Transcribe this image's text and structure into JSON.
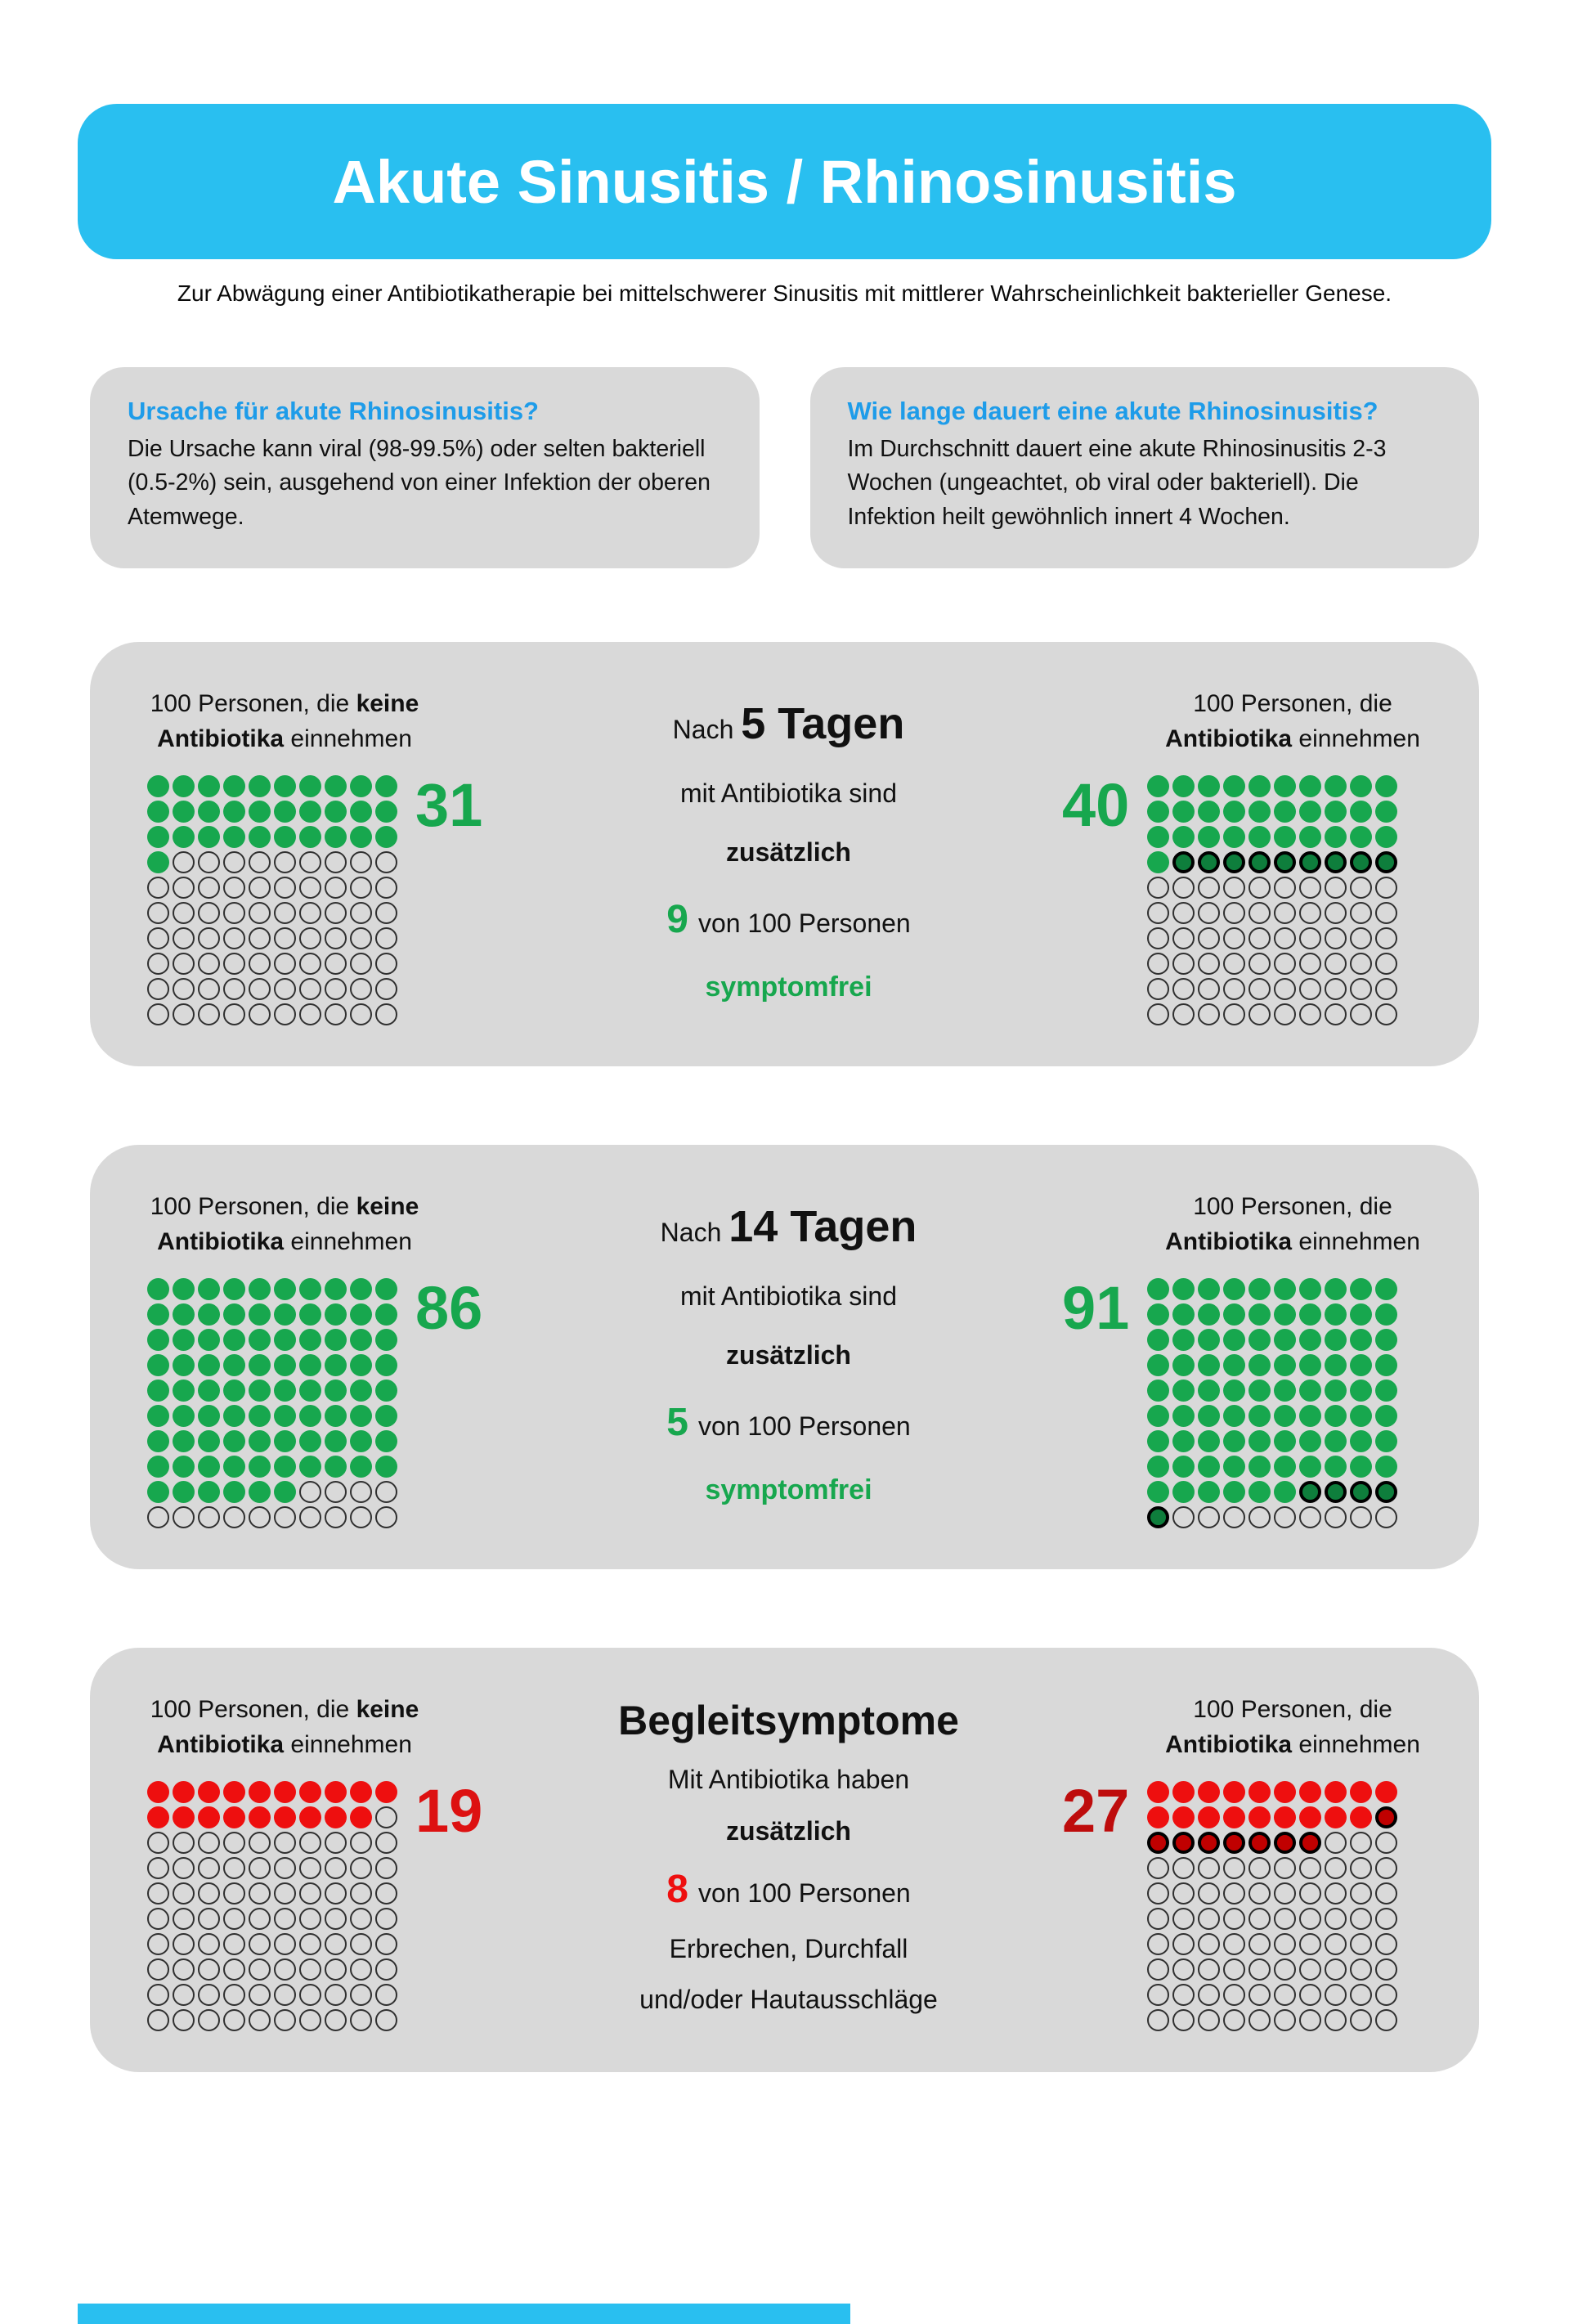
{
  "colors": {
    "header_bg": "#29BFF0",
    "question_heading": "#1E9CE9",
    "panel_bg": "#D9D9D9",
    "green": "#17A74E",
    "green_dark": "#0E7E3C",
    "red": "#EE0F0F",
    "red_dark": "#C00000",
    "num_red_light": "#DD1111",
    "num_red_dark": "#BE0C0C"
  },
  "page": {
    "title": "Akute Sinusitis / Rhinosinusitis",
    "subtitle": "Zur Abwägung einer Antibiotikatherapie bei mittelschwerer Sinusitis mit mittlerer Wahrscheinlichkeit bakterieller Genese."
  },
  "info_boxes": [
    {
      "heading": "Ursache für akute Rhinosinusitis?",
      "body": "Die Ursache kann viral (98-99.5%) oder selten bakteriell (0.5-2%) sein, ausgehend von einer Infektion der oberen Atemwege."
    },
    {
      "heading": "Wie lange dauert eine akute Rhinosinusitis?",
      "body": "Im Durchschnitt dauert eine akute Rhinosinusitis 2-3 Wochen (ungeachtet, ob viral oder bakteriell). Die Infektion heilt gewöhnlich innert 4 Wochen."
    }
  ],
  "panels": [
    {
      "left": {
        "label": {
          "l1n": "100 Personen, die ",
          "l1b": "keine",
          "l2b": "Antibiotika",
          "l2n": " einnehmen"
        },
        "count": "31",
        "chart": {
          "bright": 31,
          "dark": 0,
          "palette": "green"
        }
      },
      "center": {
        "pre": "Nach ",
        "big": "5 Tagen",
        "l2": "mit Antibiotika sind",
        "l3": "zusätzlich",
        "num": "9",
        "l4": "von 100 Personen",
        "l5": "symptomfrei"
      },
      "right": {
        "label": {
          "l1n": "100 Personen, die",
          "l2b": "Antibiotika",
          "l2n": " einnehmen"
        },
        "count": "40",
        "chart": {
          "bright": 31,
          "dark": 9,
          "palette": "green"
        }
      }
    },
    {
      "left": {
        "label": {
          "l1n": "100 Personen, die ",
          "l1b": "keine",
          "l2b": "Antibiotika",
          "l2n": " einnehmen"
        },
        "count": "86",
        "chart": {
          "bright": 86,
          "dark": 0,
          "palette": "green"
        }
      },
      "center": {
        "pre": "Nach ",
        "big": "14 Tagen",
        "l2": "mit Antibiotika sind",
        "l3": "zusätzlich",
        "num": "5",
        "l4": "von 100 Personen",
        "l5": "symptomfrei"
      },
      "right": {
        "label": {
          "l1n": "100 Personen, die",
          "l2b": "Antibiotika",
          "l2n": " einnehmen"
        },
        "count": "91",
        "chart": {
          "bright": 86,
          "dark": 5,
          "palette": "green"
        }
      }
    },
    {
      "left": {
        "label": {
          "l1n": "100 Personen, die ",
          "l1b": "keine",
          "l2b": "Antibiotika",
          "l2n": " einnehmen"
        },
        "count": "19",
        "chart": {
          "bright": 19,
          "dark": 0,
          "palette": "red"
        }
      },
      "center": {
        "title": "Begleitsymptome",
        "l2": "Mit Antibiotika haben",
        "l3": "zusätzlich",
        "num": "8",
        "l4": "von 100 Personen",
        "l5": "Erbrechen, Durchfall",
        "l6": "und/oder Hautausschläge"
      },
      "right": {
        "label": {
          "l1n": "100 Personen, die",
          "l2b": "Antibiotika",
          "l2n": " einnehmen"
        },
        "count": "27",
        "chart": {
          "bright": 19,
          "dark": 8,
          "palette": "red"
        }
      }
    }
  ],
  "chart_data": [
    {
      "type": "waffle",
      "title": "Nach 5 Tagen symptomfrei",
      "unit": "von 100 Personen",
      "total_per_group": 100,
      "series": [
        {
          "name": "100 Personen, die keine Antibiotika einnehmen",
          "value": 31
        },
        {
          "name": "100 Personen, die Antibiotika einnehmen",
          "value": 40
        }
      ],
      "difference_highlighted": 9,
      "note": "mit Antibiotika sind zusätzlich 9 von 100 Personen symptomfrei"
    },
    {
      "type": "waffle",
      "title": "Nach 14 Tagen symptomfrei",
      "unit": "von 100 Personen",
      "total_per_group": 100,
      "series": [
        {
          "name": "100 Personen, die keine Antibiotika einnehmen",
          "value": 86
        },
        {
          "name": "100 Personen, die Antibiotika einnehmen",
          "value": 91
        }
      ],
      "difference_highlighted": 5,
      "note": "mit Antibiotika sind zusätzlich 5 von 100 Personen symptomfrei"
    },
    {
      "type": "waffle",
      "title": "Begleitsymptome",
      "unit": "von 100 Personen",
      "total_per_group": 100,
      "series": [
        {
          "name": "100 Personen, die keine Antibiotika einnehmen",
          "value": 19
        },
        {
          "name": "100 Personen, die Antibiotika einnehmen",
          "value": 27
        }
      ],
      "difference_highlighted": 8,
      "note": "Mit Antibiotika haben zusätzlich 8 von 100 Personen Erbrechen, Durchfall und/oder Hautausschläge"
    }
  ]
}
